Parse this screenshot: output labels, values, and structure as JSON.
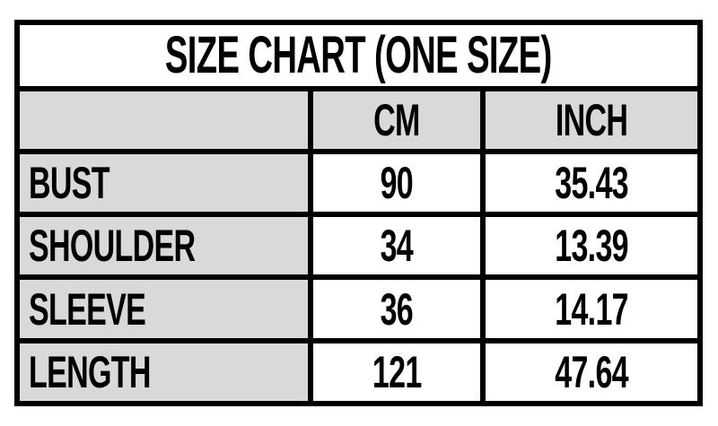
{
  "title": "SIZE CHART (ONE SIZE)",
  "colors": {
    "border": "#000000",
    "header_bg": "#d9d9d9",
    "label_bg": "#d9d9d9",
    "value_bg": "#ffffff",
    "title_bg": "#ffffff",
    "text": "#000000"
  },
  "chart_data": {
    "type": "table",
    "title": "SIZE CHART (ONE SIZE)",
    "columns": [
      "",
      "CM",
      "INCH"
    ],
    "rows": [
      [
        "BUST",
        "90",
        "35.43"
      ],
      [
        "SHOULDER",
        "34",
        "13.39"
      ],
      [
        "SLEEVE",
        "36",
        "14.17"
      ],
      [
        "LENGTH",
        "121",
        "47.64"
      ]
    ],
    "cm_values": [
      90,
      34,
      36,
      121
    ],
    "inch_values": [
      35.43,
      13.39,
      14.17,
      47.64
    ],
    "size_label": "ONE SIZE"
  }
}
